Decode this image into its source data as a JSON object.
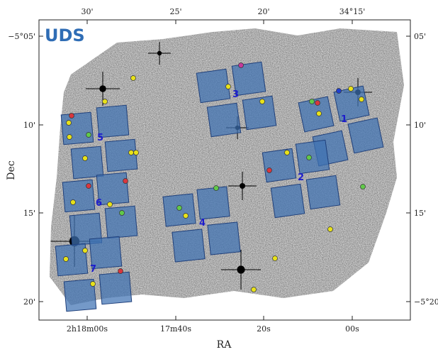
{
  "figure": {
    "title": "UDS",
    "xlabel": "RA",
    "ylabel": "Dec",
    "ra_ticks_top": [
      "30'",
      "25'",
      "20'",
      "34°15'"
    ],
    "ra_ticks_bottom": [
      "2h18m00s",
      "17m40s",
      "20s",
      "00s"
    ],
    "dec_ticks_left": [
      "−5°05'",
      "10'",
      "15'",
      "20'"
    ],
    "dec_ticks_right": [
      "05'",
      "10'",
      "15'",
      "−5°20'"
    ],
    "field_labels": [
      "1",
      "2",
      "3",
      "4",
      "5",
      "6",
      "7"
    ]
  },
  "colors": {
    "square_fill": "#3f72b3",
    "square_stroke": "#1f3f7a",
    "label_blue": "#1d1dcc",
    "title_blue": "#2f6db5",
    "marker_yellow": "#e8e21a",
    "marker_green": "#61c94a",
    "marker_red": "#d9363e",
    "marker_magenta": "#c43a9a",
    "marker_blue": "#1f3fd1"
  }
}
